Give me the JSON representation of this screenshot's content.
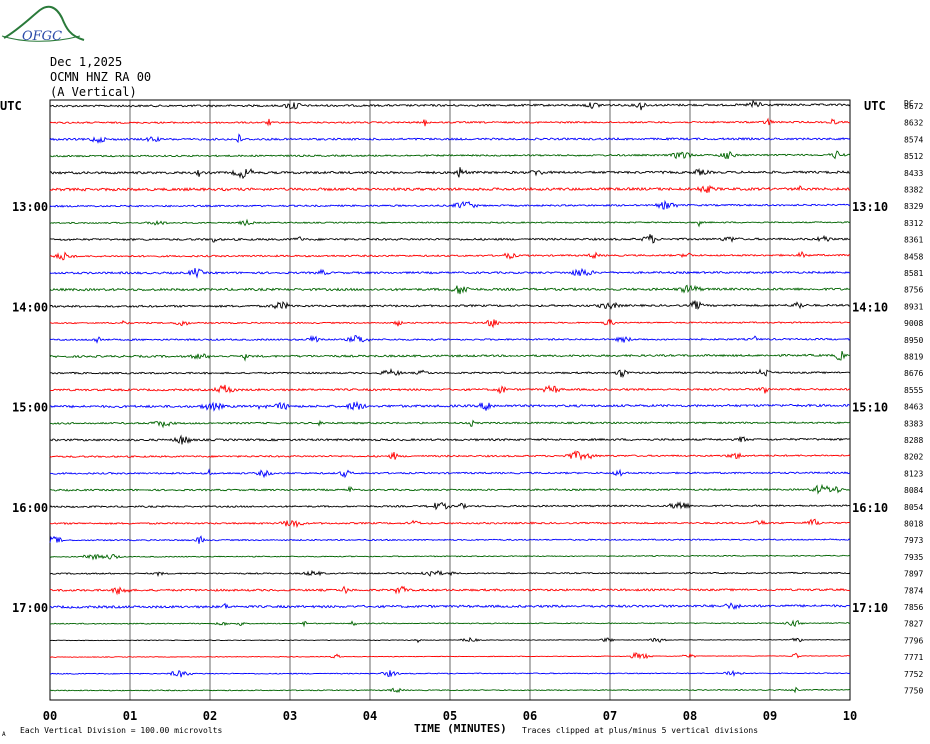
{
  "logo": {
    "text": "OFGC",
    "color": "#2a7a3a",
    "text_color": "#2a4aa8"
  },
  "header": {
    "date": "Dec 1,2025",
    "station": "OCMN HNZ RA 00",
    "component": "(A Vertical)"
  },
  "labels": {
    "utc_left": "UTC",
    "utc_right": "UTC",
    "dc": "DC",
    "x_axis_title": "TIME (MINUTES)",
    "footer_left": "Each Vertical Division =  100.00 microvolts",
    "footer_mark": "A",
    "footer_right": "Traces clipped at plus/minus 5 vertical divisions"
  },
  "chart_data": {
    "type": "line",
    "title": "",
    "xlabel": "TIME (MINUTES)",
    "ylabel": "",
    "xlim": [
      0,
      10
    ],
    "x_ticks": [
      "00",
      "01",
      "02",
      "03",
      "04",
      "05",
      "06",
      "07",
      "08",
      "09",
      "10"
    ],
    "grid": true,
    "trace_colors": [
      "#000000",
      "#ff0000",
      "#0000ff",
      "#006400"
    ],
    "left_time_labels": [
      {
        "row": 6,
        "text": "13:00"
      },
      {
        "row": 12,
        "text": "14:00"
      },
      {
        "row": 18,
        "text": "15:00"
      },
      {
        "row": 24,
        "text": "16:00"
      },
      {
        "row": 30,
        "text": "17:00"
      }
    ],
    "right_time_labels": [
      {
        "row": 6,
        "text": "13:10"
      },
      {
        "row": 12,
        "text": "14:10"
      },
      {
        "row": 18,
        "text": "15:10"
      },
      {
        "row": 24,
        "text": "16:10"
      },
      {
        "row": 30,
        "text": "17:10"
      }
    ],
    "dc_offsets": [
      "8672",
      "8632",
      "8574",
      "8512",
      "8433",
      "8382",
      "8329",
      "8312",
      "8361",
      "8458",
      "8581",
      "8756",
      "8931",
      "9008",
      "8950",
      "8819",
      "8676",
      "8555",
      "8463",
      "8383",
      "8288",
      "8202",
      "8123",
      "8084",
      "8054",
      "8018",
      "7973",
      "7935",
      "7897",
      "7874",
      "7856",
      "7827",
      "7796",
      "7771",
      "7752",
      "7750"
    ],
    "trace_activity": [
      0.6,
      0.5,
      0.6,
      0.5,
      0.7,
      0.8,
      0.5,
      0.4,
      0.6,
      0.5,
      0.6,
      0.7,
      0.6,
      0.4,
      0.5,
      0.6,
      0.5,
      0.6,
      0.7,
      0.5,
      0.6,
      0.5,
      0.5,
      0.5,
      0.5,
      0.5,
      0.4,
      0.3,
      0.4,
      0.6,
      0.7,
      0.3,
      0.2,
      0.2,
      0.3,
      0.3
    ]
  }
}
